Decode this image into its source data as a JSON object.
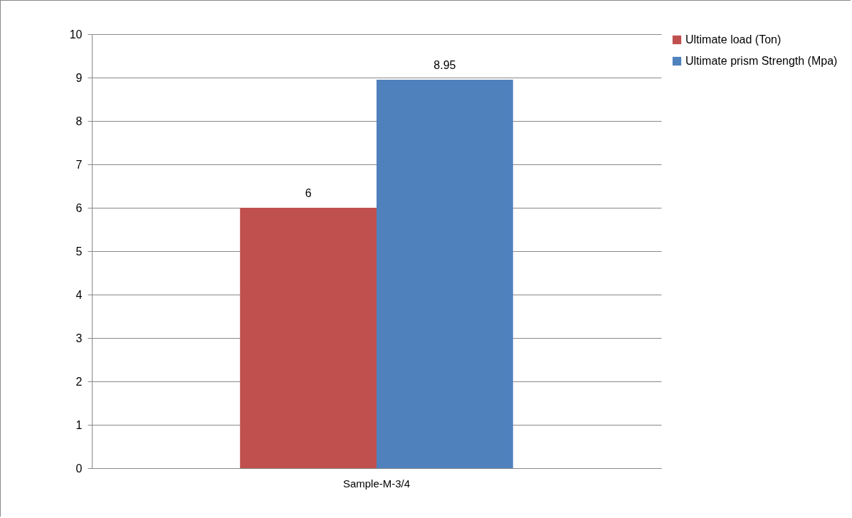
{
  "chart_data": {
    "type": "bar",
    "categories": [
      "Sample-M-3/4"
    ],
    "series": [
      {
        "name": "Ultimate load (Ton)",
        "color": "#c0504d",
        "values": [
          6
        ]
      },
      {
        "name": "Ultimate prism Strength (Mpa)",
        "color": "#4f81bd",
        "values": [
          8.95
        ]
      }
    ],
    "ylim": [
      0,
      10
    ],
    "yticks": [
      0,
      1,
      2,
      3,
      4,
      5,
      6,
      7,
      8,
      9,
      10
    ],
    "grid": "y",
    "legend": "right",
    "data_labels": true
  }
}
